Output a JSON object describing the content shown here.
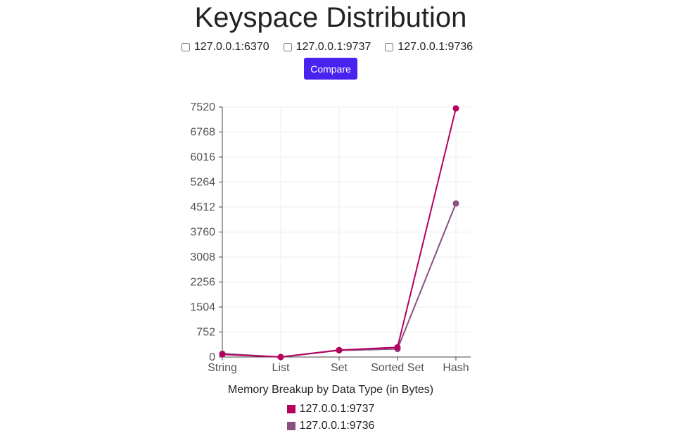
{
  "header": {
    "title": "Keyspace Distribution",
    "compare_label": "Compare"
  },
  "servers": [
    {
      "label": "127.0.0.1:6370",
      "checked": false
    },
    {
      "label": "127.0.0.1:9737",
      "checked": false
    },
    {
      "label": "127.0.0.1:9736",
      "checked": false
    }
  ],
  "chart_data": {
    "type": "line",
    "title": "Memory Breakup by Data Type (in Bytes)",
    "categories": [
      "String",
      "List",
      "Set",
      "Sorted Set",
      "Hash"
    ],
    "yticks": [
      "0",
      "752",
      "1504",
      "2256",
      "3008",
      "3760",
      "4512",
      "5264",
      "6016",
      "6768",
      "7520"
    ],
    "ylim": [
      0,
      7520
    ],
    "grid": true,
    "legend_position": "bottom",
    "series": [
      {
        "name": "127.0.0.1:9737",
        "color": "#b5005e",
        "values": [
          80,
          0,
          210,
          290,
          7480
        ]
      },
      {
        "name": "127.0.0.1:9736",
        "color": "#8a5080",
        "values": [
          100,
          0,
          200,
          240,
          4620
        ]
      }
    ]
  }
}
